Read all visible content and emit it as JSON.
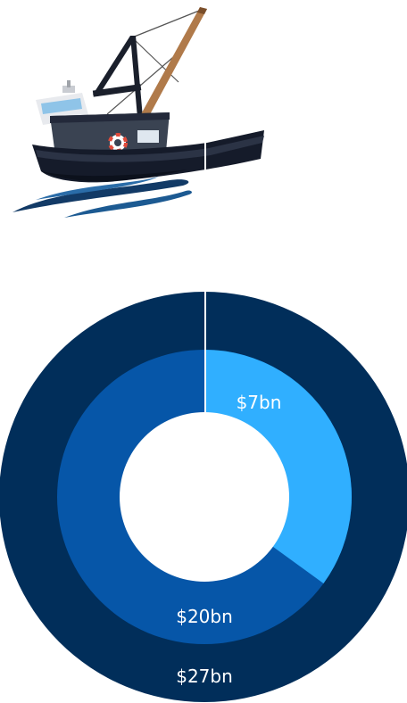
{
  "chart_data": {
    "type": "pie",
    "labels": [
      "$7bn",
      "$20bn",
      "$27bn"
    ],
    "values": [
      7,
      20,
      27
    ],
    "series": [
      {
        "label": "$27bn",
        "value": 27,
        "color": "#012e5a"
      },
      {
        "label": "$20bn",
        "value": 20,
        "color": "#0656a8"
      },
      {
        "label": "$7bn",
        "value": 7,
        "color": "#30afff"
      }
    ]
  },
  "colors": {
    "hull": "#151b2a",
    "cabin": "#3a4352",
    "boom": "#b07a4a",
    "waves": "#123a66",
    "line": "#ffffff",
    "ring_outer": "#012e5a",
    "ring_middle": "#0656a8",
    "slice": "#30afff"
  },
  "icons": {
    "boat": "fishing-boat-icon",
    "lifebuoy": "lifebuoy-icon"
  }
}
